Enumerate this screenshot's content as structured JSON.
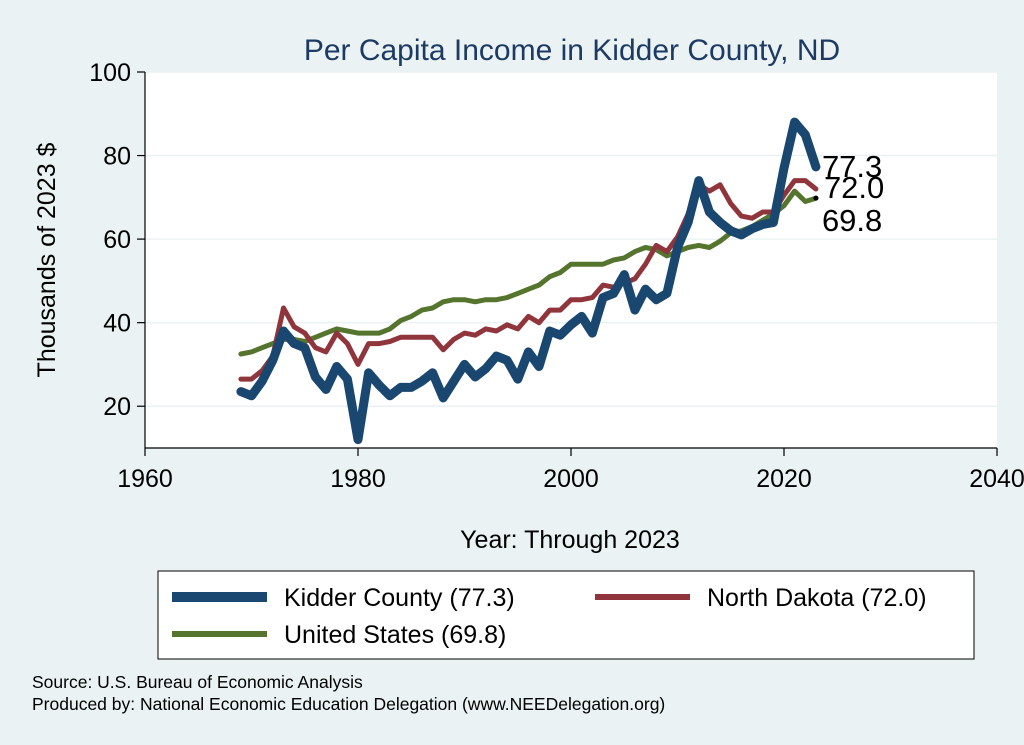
{
  "chart_data": {
    "type": "line",
    "title": "Per Capita Income in Kidder County, ND",
    "xlabel": "Year: Through 2023",
    "ylabel": "Thousands of 2023 $",
    "xlim": [
      1960,
      2040
    ],
    "ylim": [
      10,
      100
    ],
    "xticks": [
      1960,
      1980,
      2000,
      2020,
      2040
    ],
    "yticks": [
      20,
      40,
      60,
      80,
      100
    ],
    "grid": "horizontal",
    "legend_position": "bottom",
    "x": [
      1969,
      1970,
      1971,
      1972,
      1973,
      1974,
      1975,
      1976,
      1977,
      1978,
      1979,
      1980,
      1981,
      1982,
      1983,
      1984,
      1985,
      1986,
      1987,
      1988,
      1989,
      1990,
      1991,
      1992,
      1993,
      1994,
      1995,
      1996,
      1997,
      1998,
      1999,
      2000,
      2001,
      2002,
      2003,
      2004,
      2005,
      2006,
      2007,
      2008,
      2009,
      2010,
      2011,
      2012,
      2013,
      2014,
      2015,
      2016,
      2017,
      2018,
      2019,
      2020,
      2021,
      2022,
      2023
    ],
    "series": [
      {
        "name": "Kidder County (77.3)",
        "color": "#1a476f",
        "end_label": "77.3",
        "values": [
          23.5,
          22.5,
          26,
          31,
          38,
          35,
          34,
          27,
          24,
          29.5,
          26.5,
          12,
          28,
          25,
          22.5,
          24.5,
          24.5,
          26,
          28,
          22,
          26,
          30,
          27,
          29,
          32,
          31,
          26.5,
          33,
          29.5,
          38,
          37,
          39.5,
          41.5,
          37.5,
          46,
          47,
          51.5,
          43,
          48,
          45.5,
          47,
          58,
          64,
          74,
          66.5,
          64,
          62,
          61,
          62.5,
          63.5,
          64,
          77,
          88,
          85,
          77.3
        ]
      },
      {
        "name": "North Dakota (72.0)",
        "color": "#90353b",
        "end_label": "72.0",
        "values": [
          26.5,
          26.5,
          28.5,
          32,
          43.5,
          39,
          37.5,
          34,
          33,
          37.5,
          35,
          30,
          35,
          35,
          35.5,
          36.5,
          36.5,
          36.5,
          36.5,
          33.5,
          36,
          37.5,
          37,
          38.5,
          38,
          39.5,
          38.5,
          41.5,
          40,
          43,
          43,
          45.5,
          45.5,
          46,
          49,
          48.5,
          49.5,
          50.5,
          54,
          58.5,
          57,
          60.5,
          66,
          73,
          71.5,
          73,
          68.5,
          65.5,
          65,
          66.5,
          66.5,
          70.5,
          74,
          74,
          72.0
        ]
      },
      {
        "name": "United States (69.8)",
        "color": "#55752f",
        "end_label": "69.8",
        "values": [
          32.5,
          33,
          34,
          35,
          36,
          36,
          35.5,
          36.5,
          37.5,
          38.5,
          38,
          37.5,
          37.5,
          37.5,
          38.5,
          40.5,
          41.5,
          43,
          43.5,
          45,
          45.5,
          45.5,
          45,
          45.5,
          45.5,
          46,
          47,
          48,
          49,
          51,
          52,
          54,
          54,
          54,
          54,
          55,
          55.5,
          57,
          58,
          57.5,
          56,
          57,
          58,
          58.5,
          58,
          59.5,
          61.5,
          62,
          63,
          64.5,
          66,
          68,
          71.5,
          69,
          69.8
        ]
      }
    ]
  },
  "source_note": "Source: U.S. Bureau of Economic Analysis",
  "producer_note": "Produced by: National Economic Education Delegation (www.NEEDelegation.org)"
}
